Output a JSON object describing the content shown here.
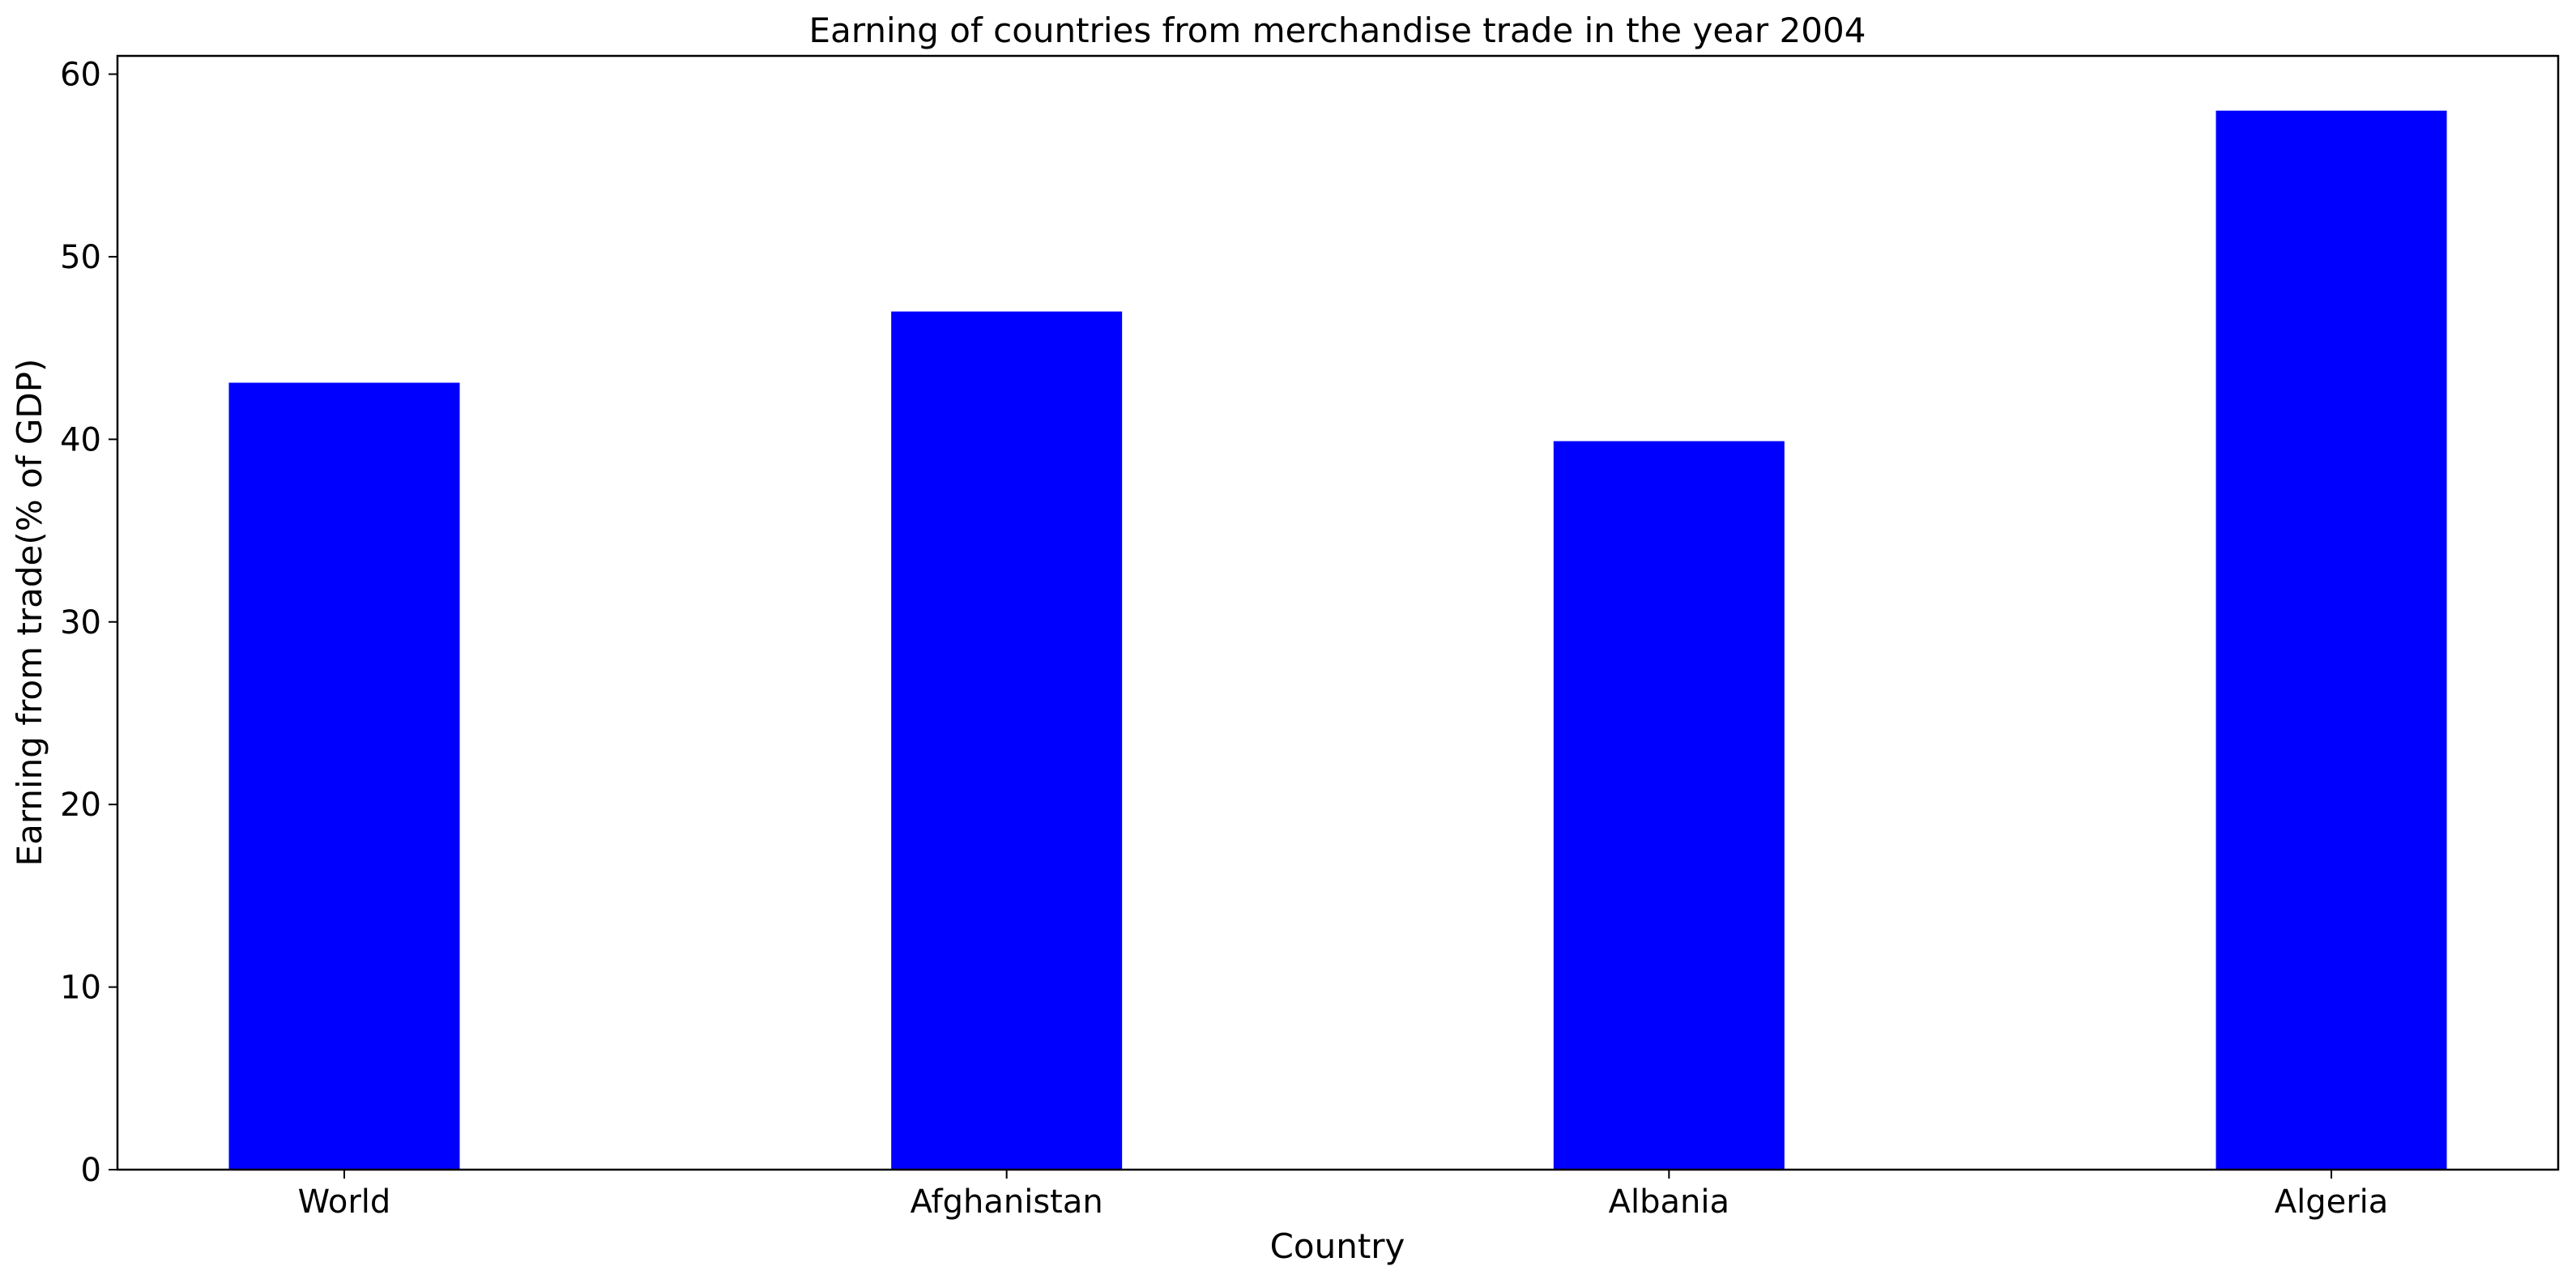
{
  "chart_data": {
    "type": "bar",
    "title": "Earning of countries from merchandise trade in the year 2004",
    "xlabel": "Country",
    "ylabel": "Earning from trade(% of GDP)",
    "categories": [
      "World",
      "Afghanistan",
      "Albania",
      "Algeria"
    ],
    "values": [
      43.1,
      47.0,
      39.9,
      58.0
    ],
    "ylim": [
      0,
      61
    ],
    "yticks": [
      0,
      10,
      20,
      30,
      40,
      50,
      60
    ],
    "bar_color": "#0000ff",
    "grid": false,
    "legend": "none"
  }
}
